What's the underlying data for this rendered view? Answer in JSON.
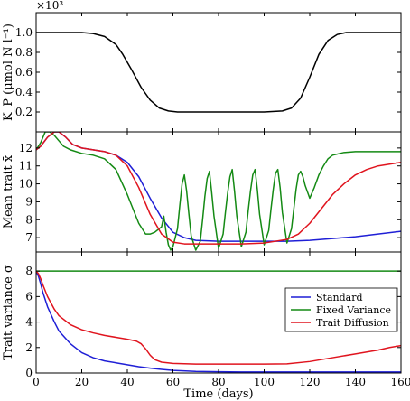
{
  "chart_data": [
    {
      "type": "line",
      "ylabel": "K_P (μmol N l⁻¹)",
      "multiplier": "×10³",
      "xlim": [
        0,
        160
      ],
      "ylim": [
        0.0,
        1.2
      ],
      "yticks": [
        0.2,
        0.4,
        0.6,
        0.8,
        1.0
      ],
      "ytick_labels": [
        "0.2",
        "0.4",
        "0.6",
        "0.8",
        "1.0"
      ],
      "series": [
        {
          "color": "#000000",
          "x": [
            0,
            10,
            20,
            25,
            30,
            35,
            38,
            42,
            46,
            50,
            54,
            58,
            62,
            70,
            80,
            90,
            100,
            108,
            112,
            116,
            120,
            124,
            128,
            132,
            136,
            140,
            150,
            160
          ],
          "y": [
            1.0,
            1.0,
            1.0,
            0.99,
            0.96,
            0.88,
            0.78,
            0.62,
            0.45,
            0.32,
            0.24,
            0.21,
            0.2,
            0.2,
            0.2,
            0.2,
            0.2,
            0.21,
            0.24,
            0.34,
            0.55,
            0.78,
            0.92,
            0.98,
            1.0,
            1.0,
            1.0,
            1.0
          ]
        }
      ]
    },
    {
      "type": "line",
      "ylabel": "Mean trait x̄",
      "xlim": [
        0,
        160
      ],
      "ylim": [
        6.2,
        12.9
      ],
      "yticks": [
        7,
        8,
        9,
        10,
        11,
        12
      ],
      "ytick_labels": [
        "7",
        "8",
        "9",
        "10",
        "11",
        "12"
      ],
      "series": [
        {
          "name": "Standard",
          "color": "#1f1fd6",
          "x": [
            0,
            2,
            5,
            8,
            10,
            13,
            16,
            20,
            25,
            30,
            35,
            40,
            45,
            50,
            55,
            60,
            65,
            70,
            80,
            90,
            100,
            110,
            120,
            130,
            140,
            150,
            160
          ],
          "y": [
            11.9,
            12.1,
            12.6,
            12.9,
            12.9,
            12.6,
            12.2,
            12.0,
            11.9,
            11.8,
            11.6,
            11.2,
            10.4,
            9.2,
            8.1,
            7.3,
            7.0,
            6.85,
            6.8,
            6.8,
            6.8,
            6.8,
            6.85,
            6.95,
            7.05,
            7.2,
            7.35
          ]
        },
        {
          "name": "Fixed Variance",
          "color": "#148a14",
          "x": [
            0,
            2,
            4,
            6,
            8,
            10,
            12,
            15,
            20,
            25,
            30,
            35,
            40,
            45,
            48,
            50,
            52,
            55,
            56,
            57,
            58,
            59,
            60,
            62,
            63,
            64,
            65,
            66,
            67,
            68,
            70,
            72,
            73,
            74,
            75,
            76,
            77,
            78,
            80,
            82,
            83,
            84,
            85,
            86,
            87,
            88,
            90,
            92,
            93,
            94,
            95,
            96,
            97,
            98,
            100,
            102,
            103,
            104,
            105,
            106,
            107,
            108,
            110,
            112,
            113,
            114,
            115,
            116,
            117,
            118,
            120,
            122,
            124,
            126,
            128,
            130,
            135,
            140,
            145,
            150,
            160
          ],
          "y": [
            11.9,
            12.3,
            12.9,
            12.9,
            12.7,
            12.4,
            12.1,
            11.9,
            11.7,
            11.6,
            11.4,
            10.8,
            9.4,
            7.8,
            7.2,
            7.2,
            7.3,
            7.6,
            8.2,
            7.3,
            6.6,
            6.3,
            6.5,
            7.5,
            8.8,
            10.0,
            10.5,
            9.6,
            8.3,
            7.1,
            6.3,
            6.8,
            8.0,
            9.3,
            10.3,
            10.7,
            9.5,
            8.2,
            6.4,
            7.2,
            8.4,
            9.5,
            10.4,
            10.8,
            9.6,
            8.2,
            6.5,
            7.3,
            8.5,
            9.6,
            10.5,
            10.8,
            9.7,
            8.3,
            6.6,
            7.4,
            8.6,
            9.7,
            10.6,
            10.8,
            9.8,
            8.4,
            6.7,
            7.5,
            8.6,
            9.7,
            10.5,
            10.7,
            10.4,
            9.9,
            9.2,
            9.8,
            10.5,
            11.0,
            11.4,
            11.6,
            11.75,
            11.8,
            11.8,
            11.8,
            11.8
          ]
        },
        {
          "name": "Trait Diffusion",
          "color": "#e0141e",
          "x": [
            0,
            2,
            5,
            8,
            10,
            13,
            16,
            20,
            25,
            30,
            35,
            40,
            45,
            50,
            55,
            60,
            65,
            70,
            80,
            90,
            100,
            110,
            115,
            120,
            125,
            130,
            135,
            140,
            145,
            150,
            155,
            160
          ],
          "y": [
            11.9,
            12.1,
            12.6,
            12.9,
            12.9,
            12.6,
            12.2,
            12.0,
            11.9,
            11.8,
            11.6,
            11.0,
            9.8,
            8.3,
            7.2,
            6.75,
            6.65,
            6.65,
            6.65,
            6.65,
            6.7,
            6.9,
            7.2,
            7.8,
            8.6,
            9.4,
            10.0,
            10.5,
            10.8,
            11.0,
            11.1,
            11.2
          ]
        }
      ]
    },
    {
      "type": "line",
      "ylabel": "Trait variance σ",
      "xlabel": "Time (days)",
      "xlim": [
        0,
        160
      ],
      "ylim": [
        0,
        9.5
      ],
      "yticks": [
        0,
        2,
        4,
        6,
        8
      ],
      "ytick_labels": [
        "0",
        "2",
        "4",
        "6",
        "8"
      ],
      "xticks": [
        0,
        20,
        40,
        60,
        80,
        100,
        120,
        140,
        160
      ],
      "xtick_labels": [
        "0",
        "20",
        "40",
        "60",
        "80",
        "100",
        "120",
        "140",
        "160"
      ],
      "legend": "lower-right",
      "series": [
        {
          "name": "Standard",
          "color": "#1f1fd6",
          "x": [
            0,
            1,
            2,
            3,
            5,
            8,
            10,
            15,
            20,
            25,
            30,
            35,
            40,
            45,
            50,
            55,
            60,
            70,
            80,
            90,
            100,
            110,
            120,
            130,
            140,
            150,
            160
          ],
          "y": [
            8.0,
            7.6,
            7.0,
            6.3,
            5.2,
            4.0,
            3.3,
            2.3,
            1.6,
            1.2,
            0.95,
            0.8,
            0.65,
            0.5,
            0.38,
            0.28,
            0.2,
            0.12,
            0.1,
            0.08,
            0.08,
            0.08,
            0.08,
            0.08,
            0.08,
            0.08,
            0.08
          ]
        },
        {
          "name": "Fixed Variance",
          "color": "#148a14",
          "x": [
            0,
            160
          ],
          "y": [
            8.0,
            8.0
          ]
        },
        {
          "name": "Trait Diffusion",
          "color": "#e0141e",
          "x": [
            0,
            1,
            2,
            3,
            5,
            8,
            10,
            15,
            20,
            25,
            30,
            35,
            40,
            44,
            46,
            48,
            50,
            52,
            55,
            60,
            70,
            80,
            90,
            100,
            110,
            120,
            130,
            140,
            150,
            155,
            160
          ],
          "y": [
            8.0,
            7.8,
            7.4,
            6.9,
            6.0,
            5.0,
            4.5,
            3.8,
            3.4,
            3.15,
            2.95,
            2.8,
            2.65,
            2.5,
            2.3,
            1.9,
            1.4,
            1.05,
            0.85,
            0.75,
            0.7,
            0.7,
            0.7,
            0.7,
            0.72,
            0.9,
            1.2,
            1.5,
            1.8,
            2.0,
            2.15
          ]
        }
      ]
    }
  ]
}
